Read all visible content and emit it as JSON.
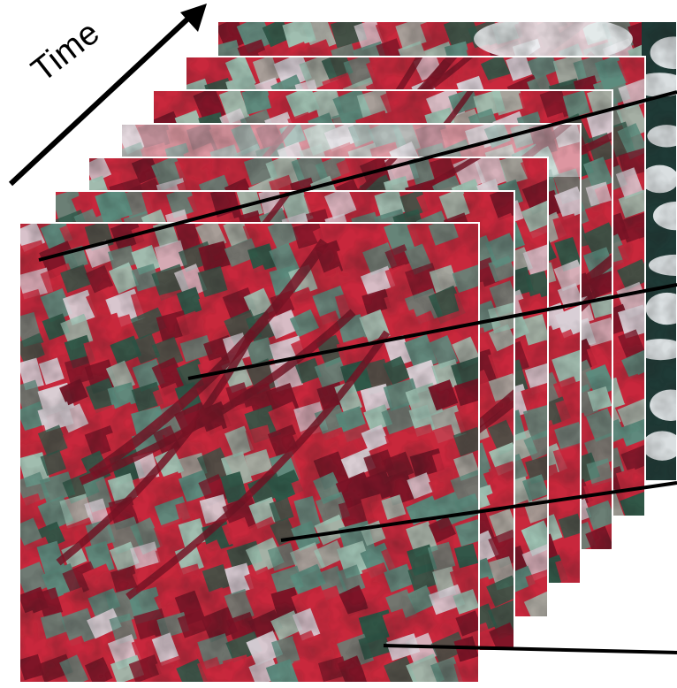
{
  "figure": {
    "axis_label": "Time",
    "frame_count": 7,
    "colors": {
      "vegetation_red": "#c8283c",
      "dark_red": "#7a1426",
      "field_teal": "#5d8c7e",
      "field_light": "#9fc2b3",
      "field_dark": "#2f5848",
      "bare_soil": "#d9cfd6",
      "cloud_white": "#eef2f4",
      "cloud_shadow": "#1f3a36",
      "line_black": "#000000"
    }
  }
}
